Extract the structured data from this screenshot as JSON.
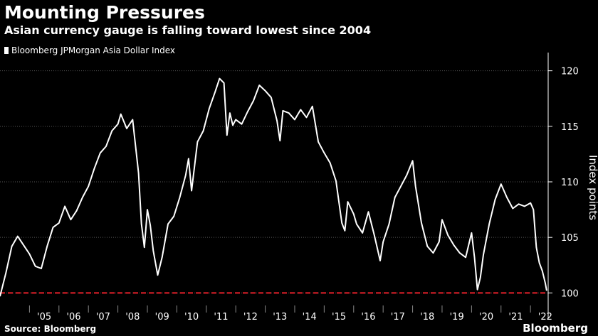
{
  "header": {
    "title": "Mounting Pressures",
    "subtitle": "Asian currency gauge is falling toward lowest since 2004"
  },
  "footer": {
    "source": "Source: Bloomberg",
    "brand": "Bloomberg"
  },
  "colors": {
    "background": "#000000",
    "line": "#ffffff",
    "reference_line": "#e8202a",
    "grid": "#555555"
  },
  "chart_data": {
    "type": "line",
    "title": "Mounting Pressures",
    "subtitle": "Asian currency gauge is falling toward lowest since 2004",
    "xlabel": "",
    "ylabel": "Index points",
    "y_axis_position": "right",
    "ylim": [
      99,
      121
    ],
    "xlim": [
      2004.0,
      2022.6
    ],
    "yticks": [
      100,
      105,
      110,
      115,
      120
    ],
    "xtick_labels": [
      "'05",
      "'06",
      "'07",
      "'08",
      "'09",
      "'10",
      "'11",
      "'12",
      "'13",
      "'14",
      "'15",
      "'16",
      "'17",
      "'18",
      "'19",
      "'20",
      "'21",
      "'22"
    ],
    "grid": "horizontal dotted",
    "legend": "top-left",
    "reference_line": {
      "y": 100,
      "style": "dashed",
      "color": "#e8202a"
    },
    "series": [
      {
        "name": "Bloomberg JPMorgan Asia Dollar Index",
        "x": [
          2004.0,
          2004.2,
          2004.4,
          2004.6,
          2004.8,
          2005.0,
          2005.2,
          2005.4,
          2005.6,
          2005.8,
          2006.0,
          2006.2,
          2006.4,
          2006.6,
          2006.8,
          2007.0,
          2007.2,
          2007.4,
          2007.6,
          2007.8,
          2008.0,
          2008.1,
          2008.3,
          2008.5,
          2008.7,
          2008.8,
          2008.9,
          2009.0,
          2009.1,
          2009.2,
          2009.35,
          2009.5,
          2009.7,
          2009.9,
          2010.1,
          2010.3,
          2010.4,
          2010.5,
          2010.7,
          2010.9,
          2011.1,
          2011.3,
          2011.45,
          2011.6,
          2011.7,
          2011.8,
          2011.9,
          2012.0,
          2012.2,
          2012.4,
          2012.6,
          2012.8,
          2013.0,
          2013.2,
          2013.4,
          2013.5,
          2013.6,
          2013.8,
          2014.0,
          2014.2,
          2014.4,
          2014.6,
          2014.8,
          2015.0,
          2015.2,
          2015.4,
          2015.6,
          2015.7,
          2015.8,
          2016.0,
          2016.1,
          2016.3,
          2016.5,
          2016.7,
          2016.9,
          2017.0,
          2017.2,
          2017.4,
          2017.6,
          2017.8,
          2018.0,
          2018.1,
          2018.3,
          2018.5,
          2018.7,
          2018.9,
          2019.0,
          2019.2,
          2019.4,
          2019.6,
          2019.8,
          2020.0,
          2020.1,
          2020.2,
          2020.3,
          2020.4,
          2020.6,
          2020.8,
          2021.0,
          2021.2,
          2021.4,
          2021.6,
          2021.8,
          2022.0,
          2022.1,
          2022.2,
          2022.3,
          2022.4,
          2022.5,
          2022.55
        ],
        "values": [
          99.7,
          101.8,
          104.2,
          105.1,
          104.3,
          103.5,
          102.4,
          102.2,
          104.2,
          105.9,
          106.3,
          107.8,
          106.6,
          107.4,
          108.6,
          109.6,
          111.2,
          112.6,
          113.2,
          114.6,
          115.2,
          116.1,
          114.8,
          115.6,
          110.8,
          106.2,
          104.1,
          107.5,
          106.1,
          103.8,
          101.6,
          103.2,
          106.2,
          106.9,
          108.6,
          110.6,
          112.1,
          109.2,
          113.6,
          114.6,
          116.6,
          118.1,
          119.3,
          118.9,
          114.2,
          116.2,
          115.1,
          115.6,
          115.2,
          116.3,
          117.3,
          118.7,
          118.2,
          117.6,
          115.5,
          113.7,
          116.4,
          116.2,
          115.6,
          116.5,
          115.8,
          116.8,
          113.6,
          112.6,
          111.7,
          110.1,
          106.3,
          105.6,
          108.2,
          107.1,
          106.2,
          105.4,
          107.3,
          105.2,
          102.9,
          104.6,
          106.2,
          108.6,
          109.6,
          110.6,
          111.9,
          109.6,
          106.3,
          104.2,
          103.6,
          104.6,
          106.6,
          105.2,
          104.3,
          103.6,
          103.2,
          105.4,
          103.2,
          100.3,
          101.4,
          103.4,
          106.2,
          108.4,
          109.8,
          108.6,
          107.6,
          108.0,
          107.8,
          108.1,
          107.5,
          104.1,
          102.7,
          102.0,
          100.9,
          100.2
        ]
      }
    ]
  }
}
